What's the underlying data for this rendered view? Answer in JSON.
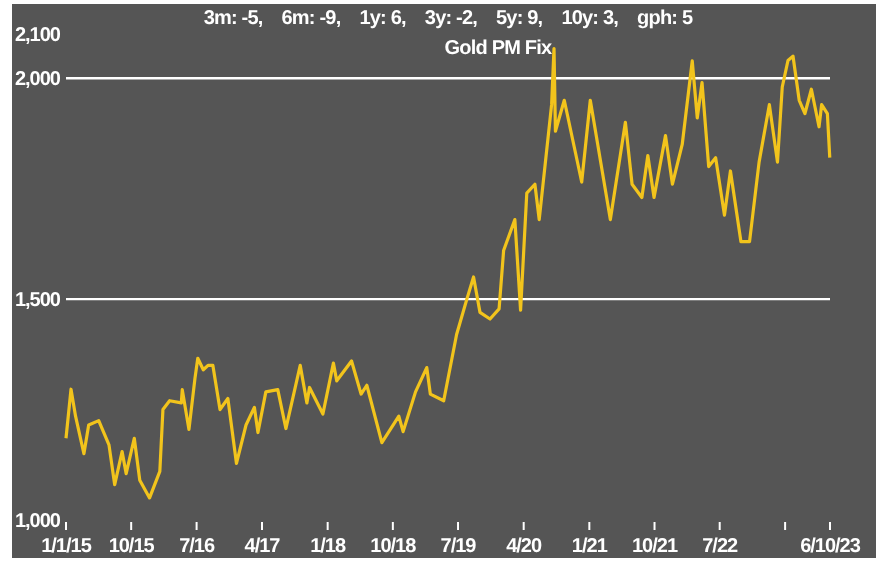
{
  "chart_data": {
    "type": "line",
    "title": "Gold PM Fix",
    "subtitle": "3m: -5,    6m: -9,    1y: 6,    3y: -2,    5y: 9,    10y: 3,    gph: 5",
    "x": [
      "2015-01-01",
      "2015-01-22",
      "2015-02-10",
      "2015-03-17",
      "2015-04-06",
      "2015-05-18",
      "2015-06-30",
      "2015-07-24",
      "2015-08-24",
      "2015-09-10",
      "2015-10-14",
      "2015-11-06",
      "2015-12-17",
      "2016-01-29",
      "2016-02-11",
      "2016-03-10",
      "2016-04-28",
      "2016-05-02",
      "2016-05-30",
      "2016-06-24",
      "2016-07-06",
      "2016-07-29",
      "2016-08-18",
      "2016-09-07",
      "2016-10-07",
      "2016-11-09",
      "2016-12-15",
      "2017-01-24",
      "2017-02-28",
      "2017-03-15",
      "2017-04-17",
      "2017-06-06",
      "2017-07-10",
      "2017-09-08",
      "2017-10-06",
      "2017-10-17",
      "2017-12-12",
      "2018-01-25",
      "2018-02-08",
      "2018-04-11",
      "2018-05-21",
      "2018-06-14",
      "2018-08-16",
      "2018-10-26",
      "2018-11-13",
      "2019-01-04",
      "2019-02-20",
      "2019-03-07",
      "2019-05-02",
      "2019-06-25",
      "2019-08-07",
      "2019-09-04",
      "2019-10-01",
      "2019-11-12",
      "2019-12-20",
      "2020-01-08",
      "2020-02-24",
      "2020-03-19",
      "2020-04-14",
      "2020-05-18",
      "2020-06-05",
      "2020-07-27",
      "2020-08-06",
      "2020-08-12",
      "2020-09-18",
      "2020-11-30",
      "2021-01-05",
      "2021-03-30",
      "2021-06-01",
      "2021-06-29",
      "2021-08-09",
      "2021-09-03",
      "2021-09-29",
      "2021-11-16",
      "2021-12-15",
      "2022-01-25",
      "2022-03-08",
      "2022-03-29",
      "2022-04-18",
      "2022-05-16",
      "2022-06-14",
      "2022-07-21",
      "2022-08-15",
      "2022-09-28",
      "2022-11-03",
      "2022-12-13",
      "2023-01-25",
      "2023-02-28",
      "2023-03-20",
      "2023-04-13",
      "2023-05-04",
      "2023-05-30",
      "2023-06-23",
      "2023-07-20",
      "2023-08-21",
      "2023-09-01",
      "2023-09-25",
      "2023-10-05"
    ],
    "series": [
      {
        "color": "#f2c41c",
        "values": [
          1185,
          1296,
          1235,
          1150,
          1215,
          1225,
          1170,
          1080,
          1155,
          1105,
          1185,
          1090,
          1050,
          1110,
          1250,
          1270,
          1265,
          1295,
          1205,
          1320,
          1366,
          1340,
          1350,
          1350,
          1250,
          1275,
          1128,
          1215,
          1255,
          1198,
          1290,
          1295,
          1207,
          1350,
          1265,
          1300,
          1240,
          1355,
          1315,
          1360,
          1285,
          1305,
          1175,
          1235,
          1200,
          1290,
          1345,
          1285,
          1270,
          1420,
          1500,
          1550,
          1470,
          1455,
          1478,
          1610,
          1680,
          1475,
          1740,
          1760,
          1680,
          1940,
          2067,
          1880,
          1950,
          1765,
          1950,
          1680,
          1900,
          1760,
          1730,
          1825,
          1730,
          1870,
          1760,
          1850,
          2039,
          1910,
          1990,
          1800,
          1820,
          1690,
          1790,
          1630,
          1630,
          1810,
          1940,
          1810,
          1980,
          2040,
          2050,
          1950,
          1920,
          1975,
          1890,
          1940,
          1920,
          1820
        ]
      }
    ],
    "xlim": [
      "2015-01-01",
      "2023-10-06"
    ],
    "xticks": [
      {
        "value": "2015-01-01",
        "label": "1/1/15"
      },
      {
        "value": "2015-10-01",
        "label": "10/15"
      },
      {
        "value": "2016-07-01",
        "label": "7/16"
      },
      {
        "value": "2017-04-01",
        "label": "4/17"
      },
      {
        "value": "2018-01-01",
        "label": "1/18"
      },
      {
        "value": "2018-10-01",
        "label": "10/18"
      },
      {
        "value": "2019-07-01",
        "label": "7/19"
      },
      {
        "value": "2020-04-01",
        "label": "4/20"
      },
      {
        "value": "2021-01-01",
        "label": "1/21"
      },
      {
        "value": "2021-10-01",
        "label": "10/21"
      },
      {
        "value": "2022-07-01",
        "label": "7/22"
      },
      {
        "value": "2023-04-01",
        "label": null
      },
      {
        "value": "2023-10-06",
        "label": "6/10/23"
      }
    ],
    "ylim": [
      1000,
      2100
    ],
    "yticks": [
      {
        "value": 1000,
        "label": "1,000"
      },
      {
        "value": 1500,
        "label": "1,500"
      },
      {
        "value": 2000,
        "label": "2,000"
      },
      {
        "value": 2100,
        "label": "2,100"
      }
    ],
    "ref_lines": [
      {
        "axis": "y",
        "value": 1500,
        "color": "#ffffff"
      },
      {
        "axis": "y",
        "value": 2000,
        "color": "#ffffff"
      }
    ]
  }
}
